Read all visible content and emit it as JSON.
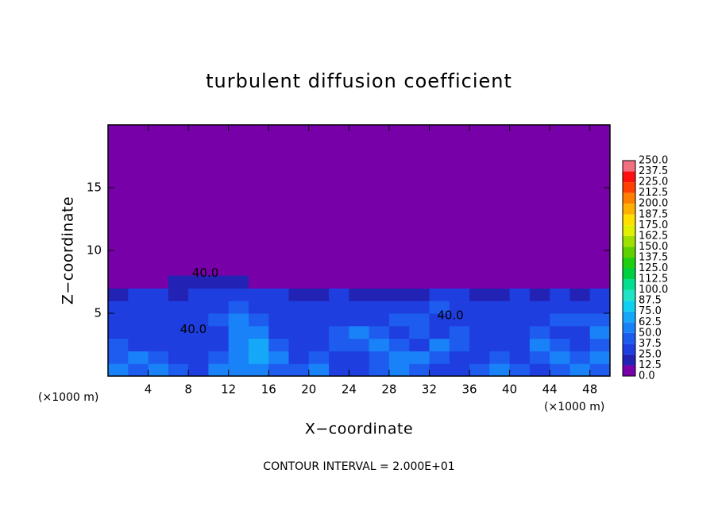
{
  "chart_data": {
    "type": "contour",
    "title": "turbulent diffusion coefficient",
    "x_label": "X−coordinate",
    "y_label": "Z−coordinate",
    "x_unit_left": "(×1000 m)",
    "x_unit_right": "(×1000 m)",
    "footer": "CONTOUR INTERVAL = 2.000E+01",
    "xlim": [
      0,
      50
    ],
    "ylim": [
      0,
      20
    ],
    "xticks": [
      4,
      8,
      12,
      16,
      20,
      24,
      28,
      32,
      36,
      40,
      44,
      48
    ],
    "yticks": [
      5,
      10,
      15
    ],
    "x": [
      1,
      3,
      5,
      7,
      9,
      11,
      13,
      15,
      17,
      19,
      21,
      23,
      25,
      27,
      29,
      31,
      33,
      35,
      37,
      39,
      41,
      43,
      45,
      47,
      49
    ],
    "z": [
      0.5,
      1.5,
      2.5,
      3.5,
      4.5,
      5.5,
      6.5,
      7.5
    ],
    "values": [
      [
        55,
        45,
        60,
        40,
        35,
        50,
        55,
        60,
        45,
        40,
        50,
        35,
        30,
        45,
        55,
        40,
        35,
        30,
        45,
        50,
        40,
        35,
        45,
        55,
        40
      ],
      [
        45,
        60,
        40,
        30,
        35,
        45,
        55,
        70,
        50,
        30,
        40,
        30,
        35,
        40,
        50,
        60,
        45,
        30,
        35,
        45,
        30,
        40,
        55,
        45,
        50
      ],
      [
        40,
        35,
        30,
        25,
        30,
        35,
        50,
        65,
        40,
        30,
        35,
        40,
        45,
        55,
        40,
        35,
        50,
        40,
        30,
        35,
        30,
        50,
        40,
        35,
        45
      ],
      [
        35,
        30,
        25,
        30,
        25,
        30,
        55,
        50,
        35,
        30,
        35,
        45,
        50,
        45,
        30,
        40,
        35,
        45,
        35,
        30,
        35,
        40,
        35,
        30,
        50
      ],
      [
        30,
        35,
        25,
        25,
        30,
        40,
        60,
        40,
        30,
        35,
        30,
        35,
        30,
        35,
        40,
        45,
        35,
        30,
        30,
        30,
        35,
        30,
        40,
        45,
        40
      ],
      [
        25,
        30,
        30,
        25,
        30,
        35,
        45,
        35,
        30,
        30,
        25,
        30,
        25,
        30,
        30,
        35,
        40,
        30,
        25,
        25,
        30,
        35,
        30,
        30,
        35
      ],
      [
        20,
        25,
        25,
        20,
        25,
        30,
        30,
        30,
        25,
        20,
        20,
        25,
        15,
        20,
        20,
        20,
        25,
        30,
        20,
        20,
        25,
        20,
        25,
        20,
        25
      ],
      [
        5,
        5,
        10,
        15,
        15,
        15,
        15,
        10,
        5,
        5,
        5,
        5,
        5,
        5,
        5,
        5,
        5,
        5,
        5,
        5,
        5,
        5,
        5,
        5,
        5
      ]
    ],
    "contour_labels": [
      {
        "x": 9.7,
        "z": 8.2,
        "value": 40,
        "label": "40.0"
      },
      {
        "x": 8.5,
        "z": 3.7,
        "value": 40,
        "label": "40.0"
      },
      {
        "x": 34.1,
        "z": 4.8,
        "value": 40,
        "label": "40.0"
      }
    ],
    "levels": [
      {
        "value": 0,
        "label": "0.0"
      },
      {
        "value": 12.5,
        "label": "12.5"
      },
      {
        "value": 25,
        "label": "25.0"
      },
      {
        "value": 37.5,
        "label": "37.5"
      },
      {
        "value": 50,
        "label": "50.0"
      },
      {
        "value": 62.5,
        "label": "62.5"
      },
      {
        "value": 75,
        "label": "75.0"
      },
      {
        "value": 87.5,
        "label": "87.5"
      },
      {
        "value": 100,
        "label": "100.0"
      },
      {
        "value": 112.5,
        "label": "112.5"
      },
      {
        "value": 125,
        "label": "125.0"
      },
      {
        "value": 137.5,
        "label": "137.5"
      },
      {
        "value": 150,
        "label": "150.0"
      },
      {
        "value": 162.5,
        "label": "162.5"
      },
      {
        "value": 175,
        "label": "175.0"
      },
      {
        "value": 187.5,
        "label": "187.5"
      },
      {
        "value": 200,
        "label": "200.0"
      },
      {
        "value": 212.5,
        "label": "212.5"
      },
      {
        "value": 225,
        "label": "225.0"
      },
      {
        "value": 237.5,
        "label": "237.5"
      },
      {
        "value": 250,
        "label": "250.0"
      }
    ],
    "colors": [
      "#7800a8",
      "#2222b4",
      "#1e3ee0",
      "#1e5cf0",
      "#1a82f8",
      "#16a8f8",
      "#10d0f0",
      "#20e4c4",
      "#00e090",
      "#00d040",
      "#20d010",
      "#60d000",
      "#a0e000",
      "#e0f000",
      "#ffe000",
      "#ffb000",
      "#ff8000",
      "#ff4000",
      "#ff1010",
      "#f07080"
    ]
  }
}
